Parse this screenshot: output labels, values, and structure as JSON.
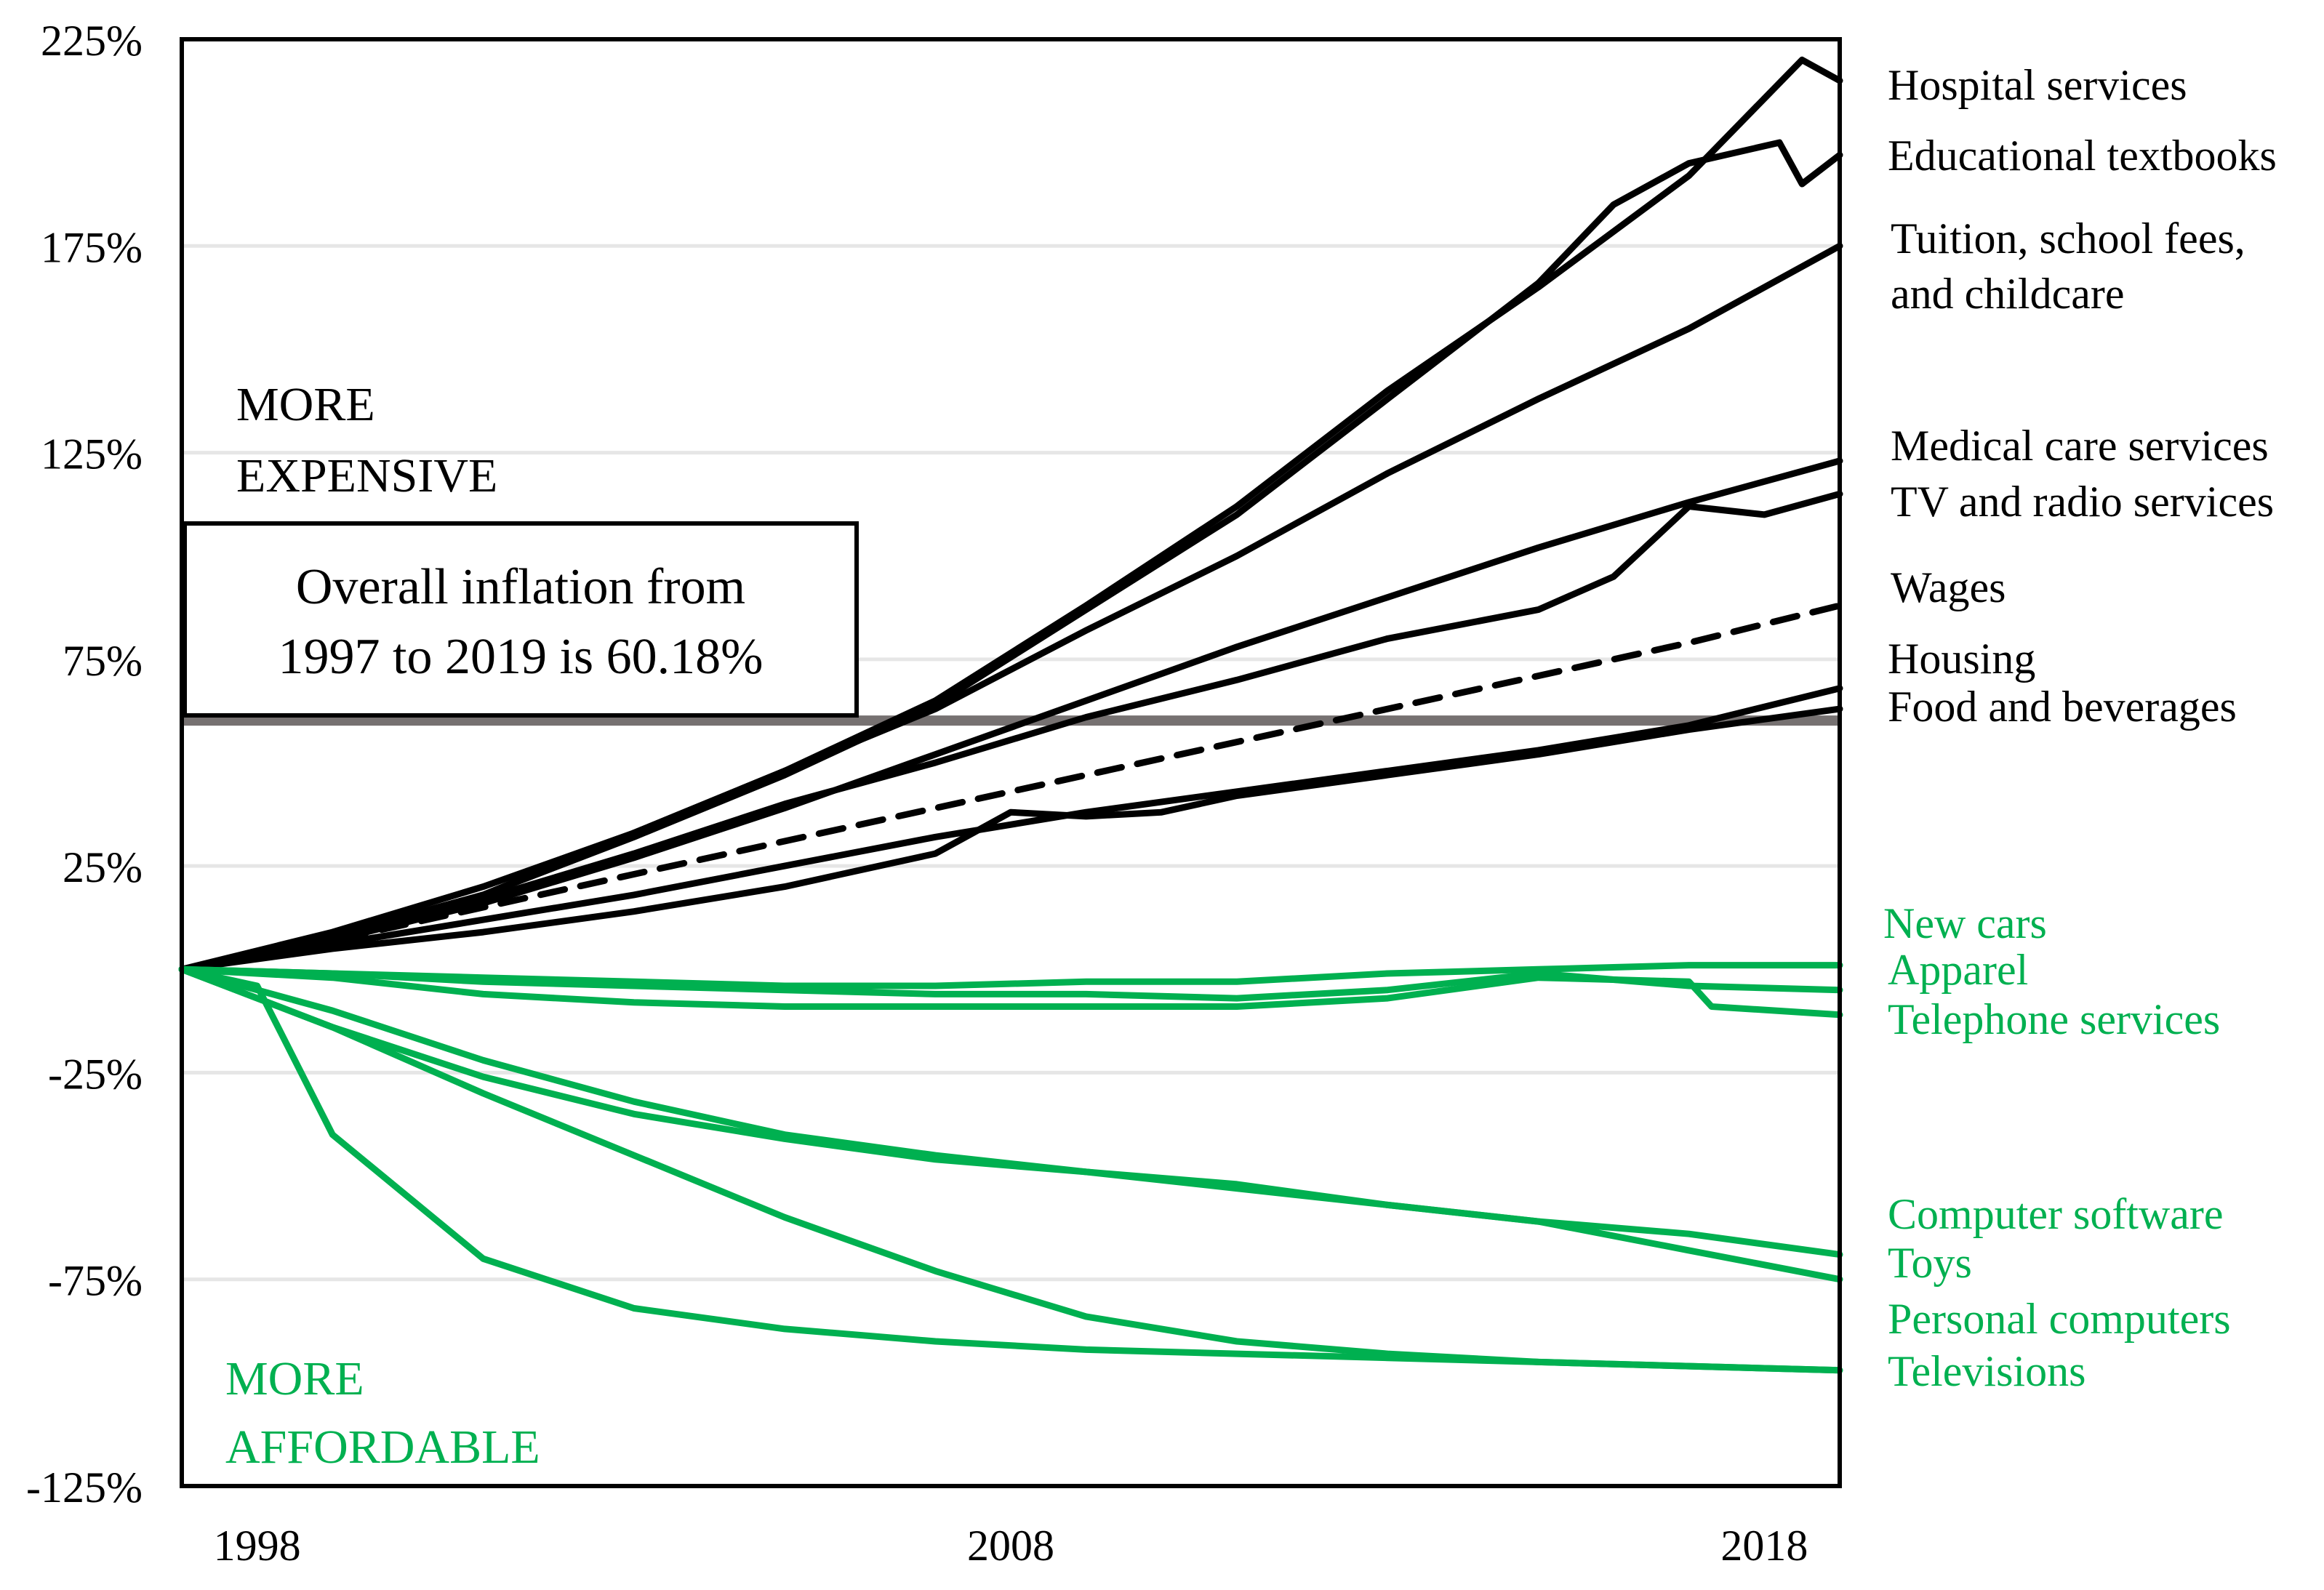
{
  "chart_data": {
    "type": "line",
    "title": "",
    "xlabel": "",
    "ylabel": "",
    "xlim": [
      1997,
      2019
    ],
    "ylim": [
      -125,
      225
    ],
    "x_ticks": [
      {
        "value": 1998,
        "label": "1998"
      },
      {
        "value": 2008,
        "label": "2008"
      },
      {
        "value": 2018,
        "label": "2018"
      }
    ],
    "y_ticks": [
      {
        "value": 225,
        "label": "225%"
      },
      {
        "value": 175,
        "label": "175%"
      },
      {
        "value": 125,
        "label": "125%"
      },
      {
        "value": 75,
        "label": "75%"
      },
      {
        "value": 25,
        "label": "25%"
      },
      {
        "value": -25,
        "label": "-25%"
      },
      {
        "value": -75,
        "label": "-75%"
      },
      {
        "value": -125,
        "label": "-125%"
      }
    ],
    "overall_inflation": {
      "value": 60.18,
      "label_lines": [
        "Overall inflation from",
        "1997 to 2019 is 60.18%"
      ]
    },
    "annotations": {
      "more_expensive": [
        "MORE",
        "EXPENSIVE"
      ],
      "more_affordable": [
        "MORE",
        "AFFORDABLE"
      ]
    },
    "colors": {
      "expensive": "#000000",
      "affordable": "#00b050",
      "overall_line": "#767171",
      "grid": "#e6e6e6"
    },
    "series": [
      {
        "name": "Hospital services",
        "group": "expensive",
        "dashed": false,
        "x": [
          1997,
          1999,
          2001,
          2003,
          2005,
          2007,
          2009,
          2011,
          2013,
          2015,
          2017,
          2018.5,
          2019
        ],
        "y": [
          0,
          8,
          18,
          33,
          48,
          65,
          88,
          112,
          140,
          165,
          192,
          220,
          215
        ]
      },
      {
        "name": "Educational textbooks",
        "group": "expensive",
        "dashed": false,
        "x": [
          1997,
          1999,
          2001,
          2003,
          2005,
          2007,
          2009,
          2011,
          2013,
          2015,
          2016,
          2017,
          2018.2,
          2018.5,
          2019
        ],
        "y": [
          0,
          8,
          18,
          32,
          47,
          64,
          87,
          110,
          138,
          166,
          185,
          195,
          200,
          190,
          197
        ]
      },
      {
        "name": "Tuition, school fees, and childcare",
        "group": "expensive",
        "dashed": false,
        "x": [
          1997,
          1999,
          2001,
          2003,
          2005,
          2007,
          2009,
          2011,
          2013,
          2015,
          2017,
          2019
        ],
        "y": [
          0,
          9,
          20,
          33,
          48,
          63,
          82,
          100,
          120,
          138,
          155,
          175
        ]
      },
      {
        "name": "Medical care services",
        "group": "expensive",
        "dashed": false,
        "x": [
          1997,
          1999,
          2001,
          2003,
          2005,
          2007,
          2009,
          2011,
          2013,
          2015,
          2017,
          2019
        ],
        "y": [
          0,
          7,
          16,
          27,
          39,
          52,
          65,
          78,
          90,
          102,
          113,
          123
        ]
      },
      {
        "name": "TV and radio services",
        "group": "expensive",
        "dashed": false,
        "x": [
          1997,
          1999,
          2001,
          2003,
          2005,
          2007,
          2009,
          2011,
          2013,
          2015,
          2016,
          2017,
          2018,
          2019
        ],
        "y": [
          0,
          8,
          17,
          28,
          40,
          50,
          61,
          70,
          80,
          87,
          95,
          112,
          110,
          115
        ]
      },
      {
        "name": "Wages",
        "group": "expensive",
        "dashed": true,
        "x": [
          1997,
          1999,
          2001,
          2003,
          2005,
          2007,
          2009,
          2011,
          2013,
          2015,
          2017,
          2019
        ],
        "y": [
          0,
          7,
          15,
          23,
          31,
          39,
          47,
          55,
          63,
          71,
          79,
          88
        ]
      },
      {
        "name": "Housing",
        "group": "expensive",
        "dashed": false,
        "x": [
          1997,
          1999,
          2001,
          2003,
          2005,
          2007,
          2009,
          2011,
          2013,
          2015,
          2017,
          2019
        ],
        "y": [
          0,
          6,
          12,
          18,
          25,
          32,
          38,
          43,
          48,
          53,
          59,
          68
        ]
      },
      {
        "name": "Food and beverages",
        "group": "expensive",
        "dashed": false,
        "x": [
          1997,
          1999,
          2001,
          2003,
          2005,
          2007,
          2008,
          2009,
          2010,
          2011,
          2013,
          2015,
          2017,
          2019
        ],
        "y": [
          0,
          5,
          9,
          14,
          20,
          28,
          38,
          37,
          38,
          42,
          47,
          52,
          58,
          63
        ]
      },
      {
        "name": "New cars",
        "group": "affordable",
        "dashed": false,
        "x": [
          1997,
          1999,
          2001,
          2003,
          2005,
          2007,
          2009,
          2011,
          2013,
          2015,
          2017,
          2019
        ],
        "y": [
          0,
          -1,
          -2,
          -3,
          -4,
          -4,
          -3,
          -3,
          -1,
          0,
          1,
          1
        ]
      },
      {
        "name": "Apparel",
        "group": "affordable",
        "dashed": false,
        "x": [
          1997,
          1999,
          2001,
          2003,
          2005,
          2007,
          2009,
          2011,
          2013,
          2015,
          2017,
          2019
        ],
        "y": [
          0,
          -1,
          -3,
          -4,
          -5,
          -6,
          -6,
          -7,
          -5,
          -1,
          -4,
          -5
        ]
      },
      {
        "name": "Telephone services",
        "group": "affordable",
        "dashed": false,
        "x": [
          1997,
          1999,
          2001,
          2003,
          2005,
          2007,
          2009,
          2011,
          2013,
          2015,
          2017,
          2017.3,
          2019
        ],
        "y": [
          0,
          -2,
          -6,
          -8,
          -9,
          -9,
          -9,
          -9,
          -7,
          -2,
          -3,
          -9,
          -11
        ]
      },
      {
        "name": "Computer software",
        "group": "affordable",
        "dashed": false,
        "x": [
          1997,
          1999,
          2001,
          2003,
          2005,
          2007,
          2009,
          2011,
          2013,
          2015,
          2017,
          2019
        ],
        "y": [
          0,
          -14,
          -26,
          -35,
          -41,
          -46,
          -49,
          -53,
          -57,
          -61,
          -64,
          -69
        ]
      },
      {
        "name": "Toys",
        "group": "affordable",
        "dashed": false,
        "x": [
          1997,
          1999,
          2001,
          2003,
          2005,
          2007,
          2009,
          2011,
          2013,
          2015,
          2017,
          2019
        ],
        "y": [
          0,
          -10,
          -22,
          -32,
          -40,
          -45,
          -49,
          -52,
          -57,
          -61,
          -68,
          -75
        ]
      },
      {
        "name": "Personal computers",
        "group": "affordable",
        "dashed": false,
        "x": [
          1997,
          1999,
          2001,
          2003,
          2005,
          2007,
          2009,
          2011,
          2013,
          2015,
          2017,
          2019
        ],
        "y": [
          0,
          -14,
          -30,
          -45,
          -60,
          -73,
          -84,
          -90,
          -93,
          -95,
          -96,
          -97
        ]
      },
      {
        "name": "Televisions",
        "group": "affordable",
        "dashed": false,
        "x": [
          1997,
          1998,
          1999,
          2000,
          2001,
          2003,
          2005,
          2007,
          2009,
          2011,
          2013,
          2015,
          2017,
          2019
        ],
        "y": [
          0,
          -4,
          -40,
          -55,
          -70,
          -82,
          -87,
          -90,
          -92,
          -93,
          -94,
          -95,
          -96,
          -97
        ]
      }
    ],
    "labels": [
      {
        "series": "Hospital services",
        "text": "Hospital services",
        "group": "expensive"
      },
      {
        "series": "Educational textbooks",
        "text": "Educational textbooks",
        "group": "expensive"
      },
      {
        "series": "Tuition, school fees, and childcare",
        "text": "Tuition, school fees,",
        "group": "expensive"
      },
      {
        "series": "Tuition, school fees, and childcare",
        "text": "and childcare",
        "group": "expensive"
      },
      {
        "series": "Medical care services",
        "text": "Medical care services",
        "group": "expensive"
      },
      {
        "series": "TV and radio services",
        "text": "TV and radio services",
        "group": "expensive"
      },
      {
        "series": "Wages",
        "text": "Wages",
        "group": "expensive"
      },
      {
        "series": "Housing",
        "text": "Housing",
        "group": "expensive"
      },
      {
        "series": "Food and beverages",
        "text": "Food and beverages",
        "group": "expensive"
      },
      {
        "series": "New cars",
        "text": "New cars",
        "group": "affordable"
      },
      {
        "series": "Apparel",
        "text": "Apparel",
        "group": "affordable"
      },
      {
        "series": "Telephone services",
        "text": "Telephone services",
        "group": "affordable"
      },
      {
        "series": "Computer software",
        "text": "Computer software",
        "group": "affordable"
      },
      {
        "series": "Toys",
        "text": "Toys",
        "group": "affordable"
      },
      {
        "series": "Personal computers",
        "text": "Personal computers",
        "group": "affordable"
      },
      {
        "series": "Televisions",
        "text": "Televisions",
        "group": "affordable"
      }
    ]
  }
}
